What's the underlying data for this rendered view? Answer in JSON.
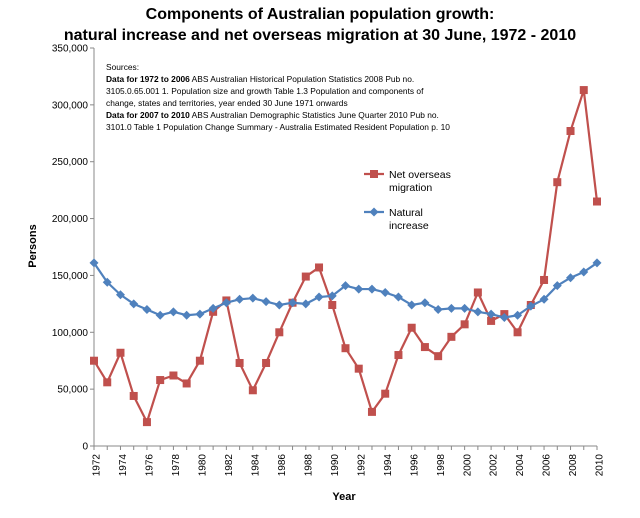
{
  "title_line1": "Components of Australian population growth:",
  "title_line2": "natural increase and net overseas migration at 30 June, 1972 - 2010",
  "sources": {
    "heading": "Sources:",
    "line1_bold": "Data for 1972 to 2006",
    "line1_rest": " ABS Australian Historical Population Statistics  2008 Pub no.",
    "line2": "3105.0.65.001  1. Population size and growth Table 1.3  Population and components of",
    "line3": "change, states and territories, year ended 30 June 1971 onwards",
    "line4_bold": "Data for 2007 to 2010",
    "line4_rest": " ABS Australian Demographic Statistics June Quarter 2010 Pub no.",
    "line5": "3101.0 Table 1 Population Change Summary - Australia Estimated  Resident Population p. 10"
  },
  "chart_data": {
    "type": "line",
    "xlabel": "Year",
    "ylabel": "Persons",
    "ylim": [
      0,
      350000
    ],
    "y_ticks": [
      "0",
      "50,000",
      "100,000",
      "150,000",
      "200,000",
      "250,000",
      "300,000",
      "350,000"
    ],
    "x": [
      1972,
      1973,
      1974,
      1975,
      1976,
      1977,
      1978,
      1979,
      1980,
      1981,
      1982,
      1983,
      1984,
      1985,
      1986,
      1987,
      1988,
      1989,
      1990,
      1991,
      1992,
      1993,
      1994,
      1995,
      1996,
      1997,
      1998,
      1999,
      2000,
      2001,
      2002,
      2003,
      2004,
      2005,
      2006,
      2007,
      2008,
      2009,
      2010
    ],
    "x_tick_labels": [
      "1972",
      "1974",
      "1976",
      "1978",
      "1980",
      "1982",
      "1984",
      "1986",
      "1988",
      "1990",
      "1992",
      "1994",
      "1996",
      "1998",
      "2000",
      "2002",
      "2004",
      "2006",
      "2008",
      "2010"
    ],
    "grid": false,
    "legend": "inside-right",
    "series": [
      {
        "name": "Net overseas migration",
        "color": "#C0504D",
        "marker": "square",
        "values": [
          75000,
          56000,
          82000,
          44000,
          21000,
          58000,
          62000,
          55000,
          75000,
          118000,
          128000,
          73000,
          49000,
          73000,
          100000,
          126000,
          149000,
          157000,
          124000,
          86000,
          68000,
          30000,
          46000,
          80000,
          104000,
          87000,
          79000,
          96000,
          107000,
          135000,
          110000,
          116000,
          100000,
          124000,
          146000,
          232000,
          277000,
          313000,
          215000
        ]
      },
      {
        "name": "Natural increase",
        "color": "#4F81BD",
        "marker": "diamond",
        "values": [
          161000,
          144000,
          133000,
          125000,
          120000,
          115000,
          118000,
          115000,
          116000,
          121000,
          126000,
          129000,
          130000,
          127000,
          124000,
          126000,
          125000,
          131000,
          132000,
          141000,
          138000,
          138000,
          135000,
          131000,
          124000,
          126000,
          120000,
          121000,
          121000,
          118000,
          116000,
          113000,
          115000,
          123000,
          129000,
          141000,
          148000,
          153000,
          161000
        ]
      }
    ],
    "legend_labels": [
      [
        "Net overseas",
        "migration"
      ],
      [
        "Natural",
        "increase"
      ]
    ]
  }
}
